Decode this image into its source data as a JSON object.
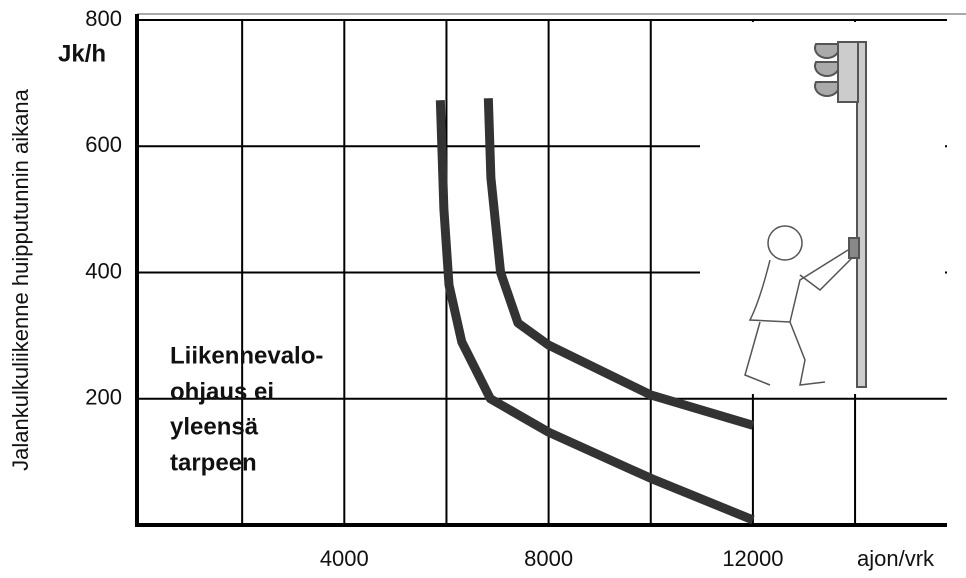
{
  "chart_data": {
    "type": "line",
    "y_label": "Jalankulkuliikenne huipputunnin aikana",
    "y_unit": "Jk/h",
    "x_unit": "ajon/vrk",
    "annotation": [
      "Liikennevalo-",
      "ohjaus ei",
      "yleensä",
      "tarpeen"
    ],
    "xlim": [
      0,
      15800
    ],
    "ylim": [
      0,
      800
    ],
    "xticks": [
      4000,
      8000,
      12000
    ],
    "yticks": [
      200,
      400,
      600,
      800
    ],
    "xgrid": [
      2000,
      4000,
      6000,
      8000,
      10000,
      12000,
      14000
    ],
    "grid": true,
    "series": [
      {
        "color": "#333333",
        "x": [
          5880,
          5950,
          6050,
          6300,
          6860,
          8000,
          10000,
          12000
        ],
        "values": [
          673,
          500,
          380,
          290,
          200,
          147,
          74,
          8
        ]
      },
      {
        "color": "#333333",
        "x": [
          6820,
          6870,
          7060,
          7400,
          8000,
          10000,
          12000
        ],
        "values": [
          676,
          550,
          400,
          320,
          285,
          206,
          158
        ]
      }
    ]
  }
}
